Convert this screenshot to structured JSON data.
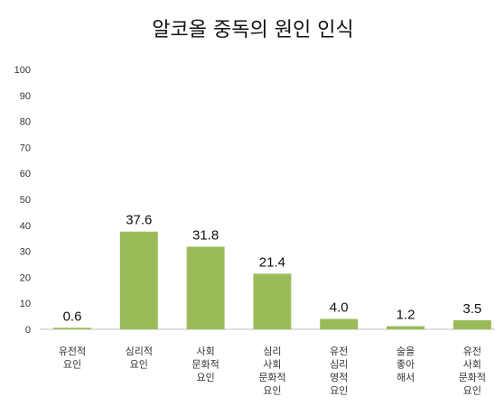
{
  "chart_data": {
    "type": "bar",
    "title": "알코올 중독의 원인 인식",
    "categories": [
      [
        "유전적",
        "요인"
      ],
      [
        "심리적",
        "요인"
      ],
      [
        "사회",
        "문화적",
        "요인"
      ],
      [
        "심리",
        "사회",
        "문화적",
        "요인"
      ],
      [
        "유전",
        "심리",
        "영적",
        "요인"
      ],
      [
        "술을",
        "좋아",
        "해서"
      ],
      [
        "유전",
        "사회",
        "문화적",
        "요인"
      ]
    ],
    "values": [
      0.6,
      37.6,
      31.8,
      21.4,
      4.0,
      1.2,
      3.5
    ],
    "value_labels": [
      "0.6",
      "37.6",
      "31.8",
      "21.4",
      "4.0",
      "1.2",
      "3.5"
    ],
    "ylim": [
      0,
      100
    ],
    "yticks": [
      0,
      10,
      20,
      30,
      40,
      50,
      60,
      70,
      80,
      90,
      100
    ],
    "grid": false,
    "legend": "none",
    "bar_color": "#9bbb59"
  }
}
